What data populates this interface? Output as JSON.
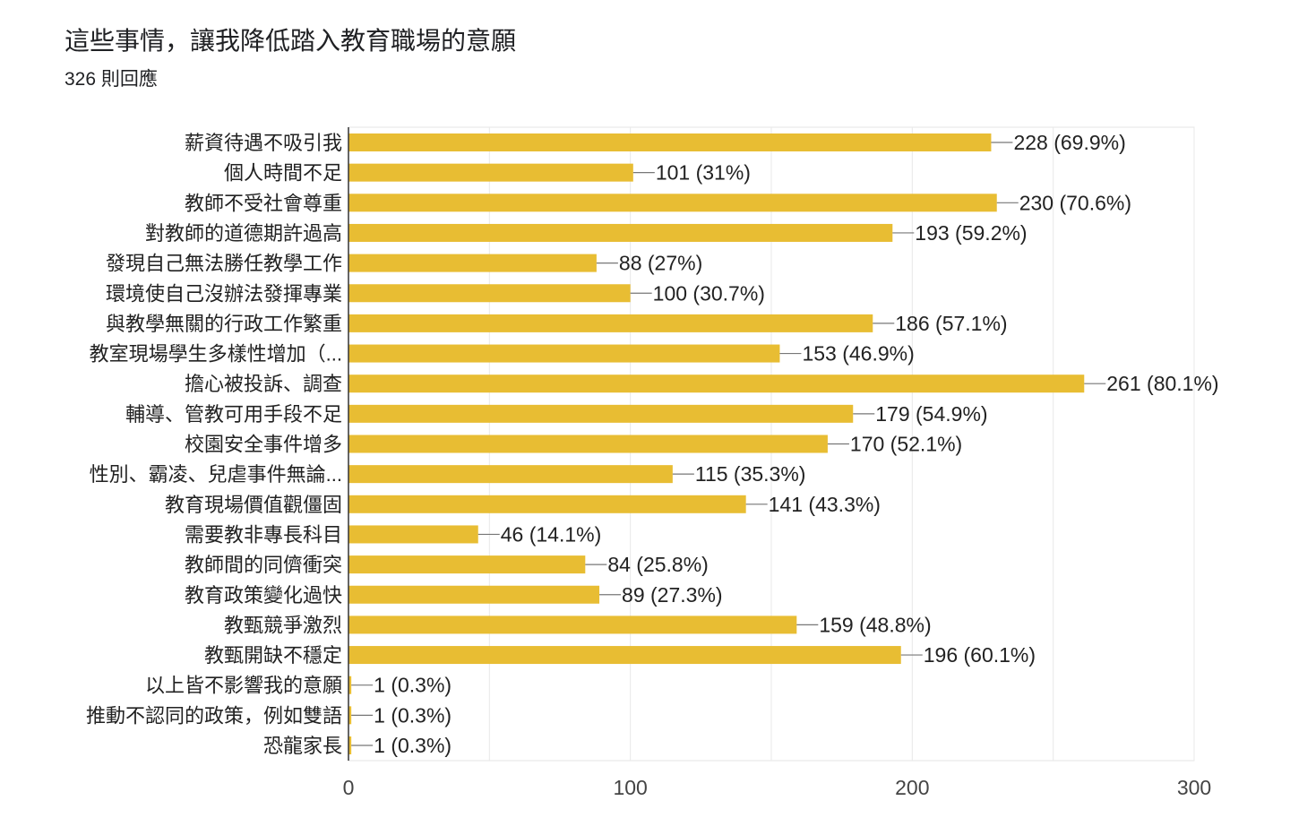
{
  "title": "這些事情，讓我降低踏入教育職場的意願",
  "subtitle": "326 則回應",
  "chart_data": {
    "type": "bar",
    "orientation": "horizontal",
    "title": "這些事情，讓我降低踏入教育職場的意願",
    "subtitle": "326 則回應",
    "bar_color": "#e8bd33",
    "xlim": [
      0,
      300
    ],
    "xticks": [
      "0",
      "100",
      "200",
      "300"
    ],
    "grid": true,
    "categories": [
      "薪資待遇不吸引我",
      "個人時間不足",
      "教師不受社會尊重",
      "對教師的道德期許過高",
      "發現自己無法勝任教學工作",
      "環境使自己沒辦法發揮專業",
      "與教學無關的行政工作繁重",
      "教室現場學生多樣性增加（...",
      "擔心被投訴、調查",
      "輔導、管教可用手段不足",
      "校園安全事件增多",
      "性別、霸凌、兒虐事件無論...",
      "教育現場價值觀僵固",
      "需要教非專長科目",
      "教師間的同儕衝突",
      "教育政策變化過快",
      "教甄競爭激烈",
      "教甄開缺不穩定",
      "以上皆不影響我的意願",
      "推動不認同的政策，例如雙語",
      "恐龍家長"
    ],
    "values": [
      228,
      101,
      230,
      193,
      88,
      100,
      186,
      153,
      261,
      179,
      170,
      115,
      141,
      46,
      84,
      89,
      159,
      196,
      1,
      1,
      1
    ],
    "labels": [
      "228 (69.9%)",
      "101 (31%)",
      "230 (70.6%)",
      "193 (59.2%)",
      "88 (27%)",
      "100 (30.7%)",
      "186 (57.1%)",
      "153 (46.9%)",
      "261 (80.1%)",
      "179 (54.9%)",
      "170 (52.1%)",
      "115 (35.3%)",
      "141 (43.3%)",
      "46 (14.1%)",
      "84 (25.8%)",
      "89 (27.3%)",
      "159 (48.8%)",
      "196 (60.1%)",
      "1 (0.3%)",
      "1 (0.3%)",
      "1 (0.3%)"
    ]
  }
}
